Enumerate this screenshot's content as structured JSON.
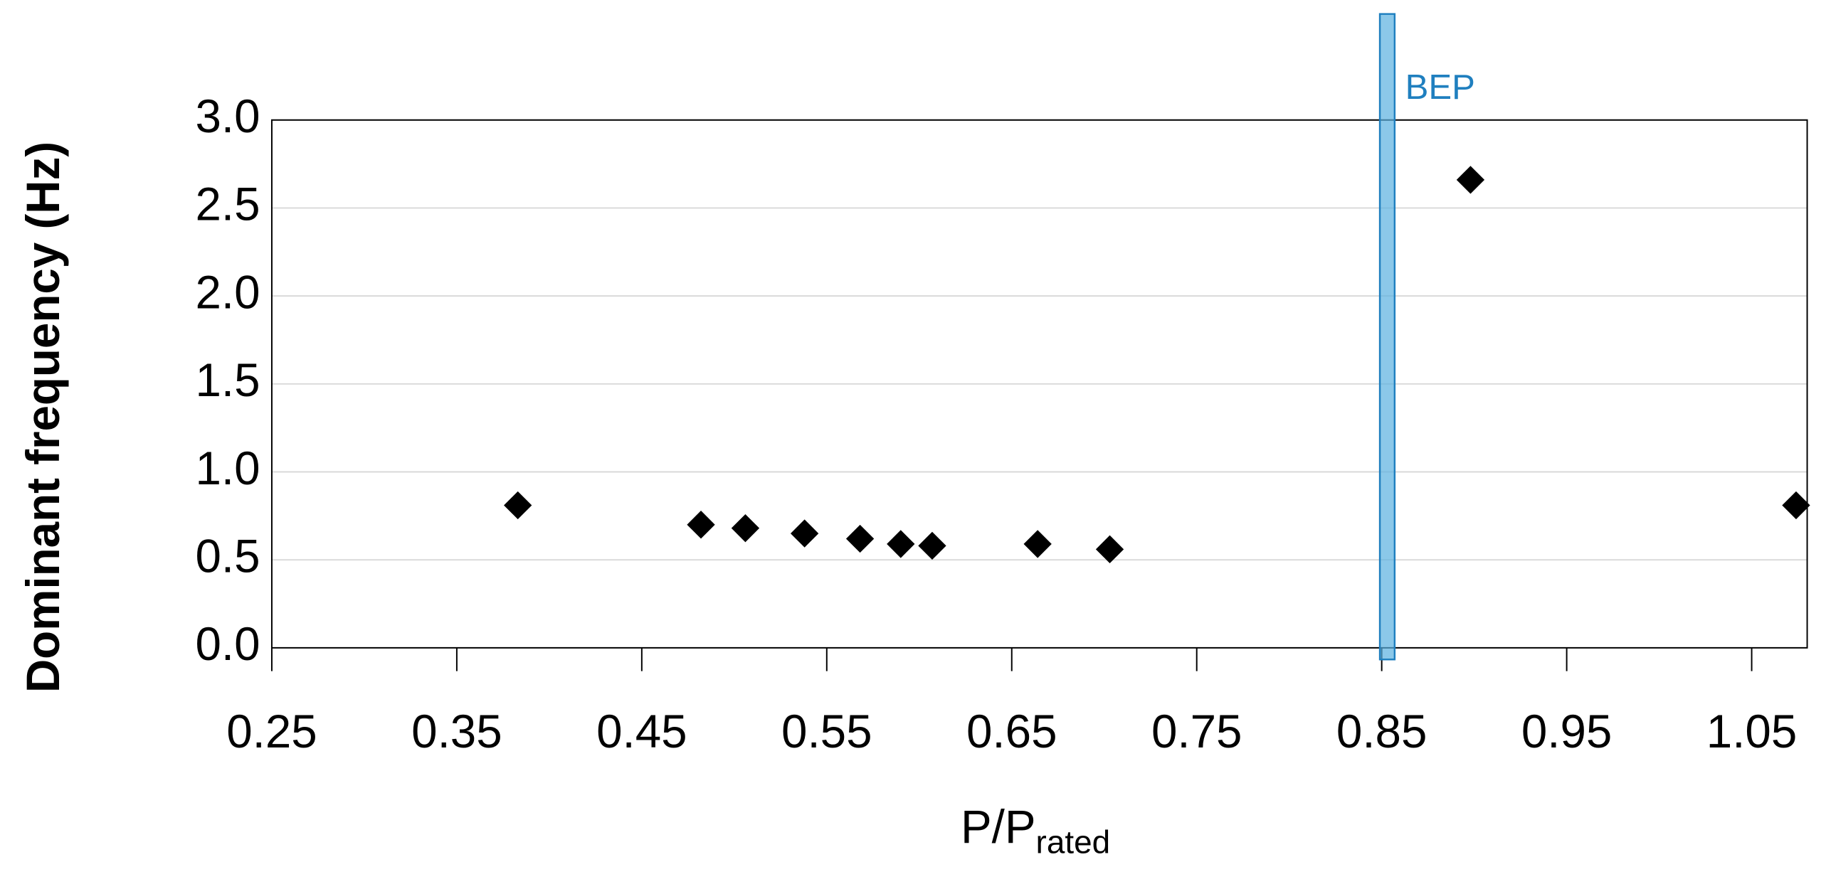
{
  "chart_data": {
    "type": "scatter",
    "ylabel": "Dominant frequency (Hz)",
    "xlabel": {
      "main": "P/P",
      "sub": "rated"
    },
    "x": [
      0.383,
      0.482,
      0.506,
      0.538,
      0.568,
      0.59,
      0.607,
      0.664,
      0.703,
      0.898,
      1.074
    ],
    "values": [
      0.81,
      0.7,
      0.68,
      0.65,
      0.62,
      0.59,
      0.58,
      0.59,
      0.56,
      2.66,
      0.81
    ],
    "color": "#000000",
    "xlim": [
      0.25,
      1.08
    ],
    "xticks": [
      0.25,
      0.35,
      0.45,
      0.55,
      0.65,
      0.75,
      0.85,
      0.95,
      1.05
    ],
    "ylim": [
      0,
      3
    ],
    "yticks": [
      {
        "value": 0,
        "label": "0.0"
      },
      0.5,
      {
        "value": 1,
        "label": "1.0"
      },
      1.5,
      {
        "value": 2,
        "label": "2.0"
      },
      2.5,
      {
        "value": 3,
        "label": "3.0"
      }
    ],
    "grid": true,
    "band": {
      "label": "BEP",
      "x": [
        0.849,
        0.857
      ],
      "color": "#5ab0e0"
    }
  }
}
